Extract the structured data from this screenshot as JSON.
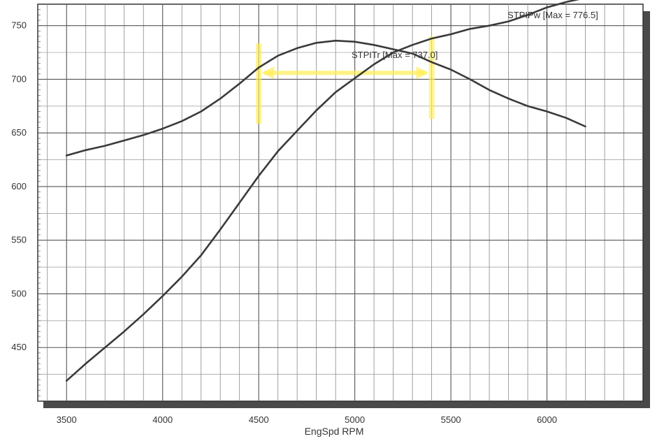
{
  "chart_data": {
    "type": "line",
    "title": "",
    "xlabel": "EngSpd RPM",
    "ylabel": "",
    "xlim": [
      3350,
      6500
    ],
    "ylim": [
      400,
      770
    ],
    "x_ticks": [
      3500,
      4000,
      4500,
      5000,
      5500,
      6000
    ],
    "y_ticks": [
      450,
      500,
      550,
      600,
      650,
      700,
      750
    ],
    "grid": true,
    "series": [
      {
        "name": "STPITr [Max = 737.0]",
        "color": "#3a3a3a",
        "x": [
          3500,
          3600,
          3700,
          3800,
          3900,
          4000,
          4100,
          4200,
          4300,
          4400,
          4500,
          4600,
          4700,
          4800,
          4900,
          5000,
          5100,
          5200,
          5300,
          5400,
          5500,
          5600,
          5700,
          5800,
          5900,
          6000,
          6100,
          6200
        ],
        "values": [
          629,
          634,
          638,
          643,
          648,
          654,
          661,
          670,
          682,
          696,
          711,
          722,
          729,
          734,
          736,
          735,
          732,
          728,
          724,
          716,
          709,
          700,
          690,
          682,
          675,
          670,
          664,
          656
        ]
      },
      {
        "name": "STPIPw [Max = 776.5]",
        "color": "#3a3a3a",
        "x": [
          3500,
          3600,
          3700,
          3800,
          3900,
          4000,
          4100,
          4200,
          4300,
          4400,
          4500,
          4600,
          4700,
          4800,
          4900,
          5000,
          5100,
          5200,
          5300,
          5400,
          5500,
          5600,
          5700,
          5800,
          5900,
          6000,
          6100,
          6200
        ],
        "values": [
          419,
          435,
          450,
          465,
          481,
          498,
          516,
          536,
          560,
          585,
          610,
          633,
          652,
          671,
          688,
          701,
          714,
          725,
          732,
          738,
          742,
          747,
          750,
          754,
          760,
          767,
          772,
          776
        ]
      }
    ],
    "highlight": {
      "color": "#ffee55",
      "x_start": 4500,
      "x_end": 5400,
      "y_arrow": 706
    }
  }
}
